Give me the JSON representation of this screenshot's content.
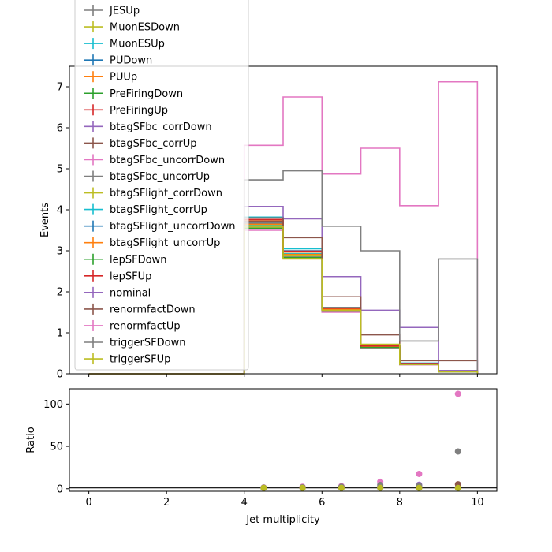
{
  "chart_data": [
    {
      "type": "line",
      "drawstyle": "steps",
      "ylabel": "Events",
      "xlim": [
        -0.5,
        10.5
      ],
      "ylim": [
        0,
        7.5
      ],
      "x_ticks": [
        0,
        2,
        4,
        6,
        8,
        10
      ],
      "y_ticks": [
        0,
        1,
        2,
        3,
        4,
        5,
        6,
        7
      ],
      "x_ticklabels_shown": false,
      "legend_position": "upper-left",
      "bin_edges": [
        0,
        1,
        2,
        3,
        4,
        5,
        6,
        7,
        8,
        9,
        10
      ],
      "series": [
        {
          "name": "JESUp",
          "color": "#7f7f7f",
          "values": [
            0,
            0,
            0,
            0,
            3.65,
            2.9,
            1.58,
            0.68,
            0.24,
            0.06
          ]
        },
        {
          "name": "MuonESDown",
          "color": "#bcbd22",
          "values": [
            0,
            0,
            0,
            0,
            3.58,
            2.82,
            1.52,
            0.63,
            0.22,
            0.05
          ]
        },
        {
          "name": "MuonESUp",
          "color": "#17becf",
          "values": [
            0,
            0,
            0,
            0,
            3.82,
            3.05,
            1.6,
            0.7,
            0.26,
            0.07
          ]
        },
        {
          "name": "PUDown",
          "color": "#1f77b4",
          "values": [
            0,
            0,
            0,
            0,
            3.7,
            3.0,
            1.6,
            0.68,
            0.25,
            0.06
          ]
        },
        {
          "name": "PUUp",
          "color": "#ff7f0e",
          "values": [
            0,
            0,
            0,
            0,
            3.75,
            2.97,
            1.57,
            0.66,
            0.24,
            0.06
          ]
        },
        {
          "name": "PreFiringDown",
          "color": "#2ca02c",
          "values": [
            0,
            0,
            0,
            0,
            3.66,
            2.88,
            1.55,
            0.65,
            0.24,
            0.06
          ]
        },
        {
          "name": "PreFiringUp",
          "color": "#d62728",
          "values": [
            0,
            0,
            0,
            0,
            3.62,
            2.98,
            1.56,
            0.66,
            0.24,
            0.06
          ]
        },
        {
          "name": "btagSFbc_corrDown",
          "color": "#9467bd",
          "values": [
            0,
            0,
            0,
            0,
            3.6,
            2.85,
            1.55,
            0.64,
            0.23,
            0.05
          ]
        },
        {
          "name": "btagSFbc_corrUp",
          "color": "#8c564b",
          "values": [
            0,
            0,
            0,
            0,
            3.72,
            2.92,
            1.58,
            0.67,
            0.24,
            0.06
          ]
        },
        {
          "name": "btagSFbc_uncorrDown",
          "color": "#e377c2",
          "values": [
            0,
            0,
            0,
            0,
            3.5,
            2.85,
            1.5,
            0.62,
            0.22,
            0.05
          ]
        },
        {
          "name": "btagSFbc_uncorrUp",
          "color": "#7f7f7f",
          "values": [
            0,
            0,
            0,
            0,
            3.68,
            2.9,
            1.62,
            0.68,
            0.25,
            0.06
          ]
        },
        {
          "name": "btagSFlight_corrDown",
          "color": "#bcbd22",
          "values": [
            0,
            0,
            0,
            0,
            3.63,
            2.88,
            1.55,
            0.65,
            0.24,
            0.06
          ]
        },
        {
          "name": "btagSFlight_corrUp",
          "color": "#17becf",
          "values": [
            0,
            0,
            0,
            0,
            3.64,
            2.93,
            1.57,
            0.66,
            0.24,
            0.06
          ]
        },
        {
          "name": "btagSFlight_uncorrDown",
          "color": "#1f77b4",
          "values": [
            0,
            0,
            0,
            0,
            3.66,
            2.9,
            1.56,
            0.66,
            0.24,
            0.06
          ]
        },
        {
          "name": "btagSFlight_uncorrUp",
          "color": "#ff7f0e",
          "values": [
            0,
            0,
            0,
            0,
            3.65,
            2.91,
            1.57,
            0.66,
            0.24,
            0.06
          ]
        },
        {
          "name": "lepSFDown",
          "color": "#2ca02c",
          "values": [
            0,
            0,
            0,
            0,
            3.55,
            2.84,
            1.53,
            0.64,
            0.23,
            0.05
          ]
        },
        {
          "name": "lepSFUp",
          "color": "#d62728",
          "values": [
            0,
            0,
            0,
            0,
            3.76,
            2.99,
            1.6,
            0.68,
            0.25,
            0.06
          ]
        },
        {
          "name": "nominal",
          "color": "#9467bd",
          "values": [
            0,
            0,
            0,
            0,
            4.08,
            3.78,
            2.37,
            1.55,
            1.13,
            0.08
          ]
        },
        {
          "name": "renormfactDown",
          "color": "#8c564b",
          "values": [
            0,
            0,
            0,
            0,
            3.8,
            3.32,
            1.88,
            0.95,
            0.32,
            0.32
          ]
        },
        {
          "name": "renormfactUp",
          "color": "#e377c2",
          "values": [
            0,
            0,
            0,
            0,
            5.57,
            6.75,
            4.87,
            5.5,
            4.1,
            7.12
          ]
        },
        {
          "name": "triggerSFDown",
          "color": "#7f7f7f",
          "values": [
            0,
            0,
            0,
            0,
            4.73,
            4.95,
            3.6,
            3.0,
            0.8,
            2.8
          ]
        },
        {
          "name": "triggerSFUp",
          "color": "#bcbd22",
          "values": [
            0,
            0,
            0,
            0,
            3.6,
            2.8,
            1.55,
            0.72,
            0.23,
            0.05
          ]
        }
      ]
    },
    {
      "type": "scatter",
      "xlabel": "Jet multiplicity",
      "ylabel": "Ratio",
      "xlim": [
        -0.5,
        10.5
      ],
      "ylim": [
        -3,
        118
      ],
      "x_ticks": [
        0,
        2,
        4,
        6,
        8,
        10
      ],
      "y_ticks": [
        0,
        50,
        100
      ],
      "reference_line_y": 1,
      "points": [
        {
          "series": "JESUp",
          "color": "#7f7f7f",
          "x": [
            4.5,
            5.5,
            6.5,
            7.5,
            8.5,
            9.5
          ],
          "y": [
            1,
            1,
            1,
            1,
            1,
            1
          ]
        },
        {
          "series": "nominal",
          "color": "#9467bd",
          "x": [
            4.5,
            5.5,
            6.5,
            7.5,
            8.5,
            9.5
          ],
          "y": [
            1,
            1,
            1.5,
            2.3,
            4.7,
            1.6
          ]
        },
        {
          "series": "renormfactDown",
          "color": "#8c564b",
          "x": [
            4.5,
            5.5,
            6.5,
            7.5,
            8.5,
            9.5
          ],
          "y": [
            1,
            1.1,
            1.2,
            1.4,
            1.3,
            5.3
          ]
        },
        {
          "series": "renormfactUp",
          "color": "#e377c2",
          "x": [
            4.5,
            5.5,
            6.5,
            7.5,
            8.5,
            9.5
          ],
          "y": [
            1.5,
            2.3,
            3.1,
            8.3,
            17.5,
            112
          ]
        },
        {
          "series": "triggerSFDown",
          "color": "#7f7f7f",
          "x": [
            4.5,
            5.5,
            6.5,
            7.5,
            8.5,
            9.5
          ],
          "y": [
            1.3,
            1.7,
            2.3,
            4.5,
            3.4,
            44
          ]
        },
        {
          "series": "triggerSFUp",
          "color": "#bcbd22",
          "x": [
            4.5,
            5.5,
            6.5,
            7.5,
            8.5,
            9.5
          ],
          "y": [
            1,
            1,
            1,
            1.1,
            1,
            0.9
          ]
        }
      ]
    }
  ]
}
